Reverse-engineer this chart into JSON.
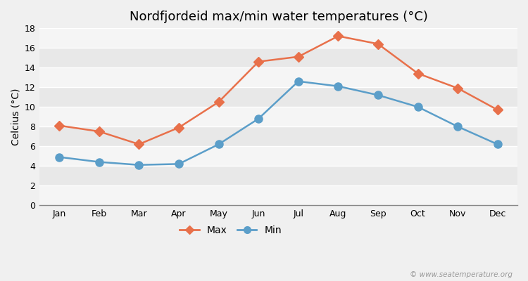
{
  "title": "Nordfjordeid max/min water temperatures (°C)",
  "ylabel_label": "Celcius (°C)",
  "months": [
    "Jan",
    "Feb",
    "Mar",
    "Apr",
    "May",
    "Jun",
    "Jul",
    "Aug",
    "Sep",
    "Oct",
    "Nov",
    "Dec"
  ],
  "max_temps": [
    8.1,
    7.5,
    6.2,
    7.9,
    10.5,
    14.6,
    15.1,
    17.2,
    16.4,
    13.4,
    11.9,
    9.7
  ],
  "min_temps": [
    4.9,
    4.4,
    4.1,
    4.2,
    6.2,
    8.8,
    12.6,
    12.1,
    11.2,
    10.0,
    8.0,
    6.2
  ],
  "max_color": "#e8704a",
  "min_color": "#5b9ec9",
  "bg_color": "#f0f0f0",
  "plot_bg_light": "#f5f5f5",
  "plot_bg_dark": "#e8e8e8",
  "ylim": [
    0,
    18
  ],
  "yticks": [
    0,
    2,
    4,
    6,
    8,
    10,
    12,
    14,
    16,
    18
  ],
  "grid_color": "#ffffff",
  "watermark": "© www.seatemperature.org",
  "title_fontsize": 13,
  "axis_label_fontsize": 10,
  "tick_fontsize": 9,
  "legend_fontsize": 10
}
